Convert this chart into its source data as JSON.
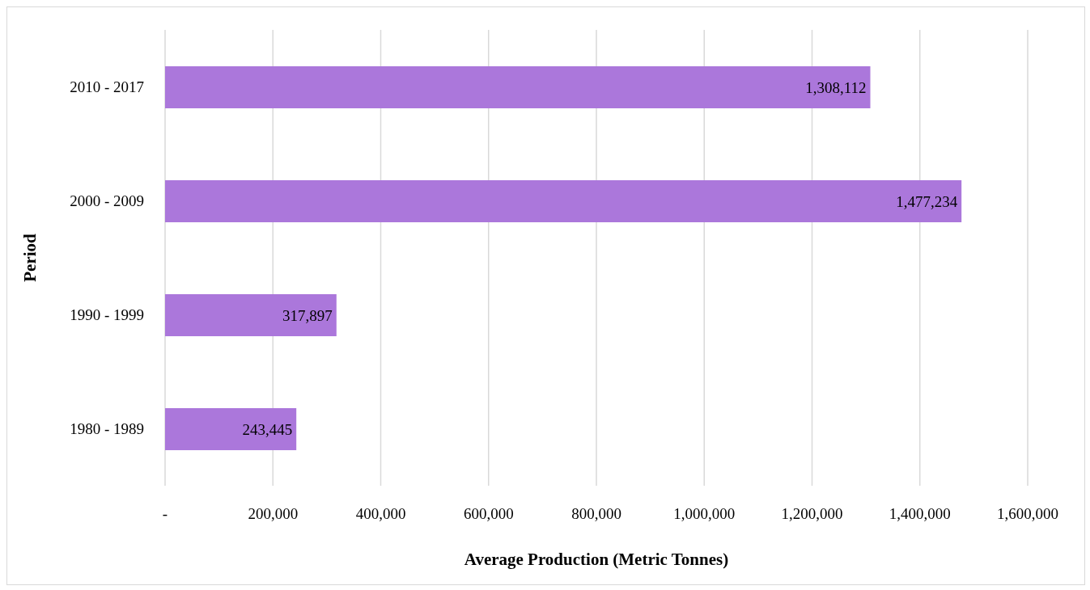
{
  "chart_data": {
    "type": "bar",
    "orientation": "horizontal",
    "xlabel": "Average Production (Metric Tonnes)",
    "ylabel": "Period",
    "categories": [
      "2010 - 2017",
      "2000 - 2009",
      "1990 - 1999",
      "1980 - 1989"
    ],
    "values": [
      1308112,
      1477234,
      317897,
      243445
    ],
    "color": "#ab77db",
    "value_labels": [
      "1,308,112",
      "1,477,234",
      "317,897",
      "243,445"
    ],
    "xlim": [
      0,
      1600000
    ],
    "xticks": [
      {
        "value": 0,
        "label": "-"
      },
      {
        "value": 200000,
        "label": "200,000"
      },
      {
        "value": 400000,
        "label": "400,000"
      },
      {
        "value": 600000,
        "label": "600,000"
      },
      {
        "value": 800000,
        "label": "800,000"
      },
      {
        "value": 1000000,
        "label": "1,000,000"
      },
      {
        "value": 1200000,
        "label": "1,200,000"
      },
      {
        "value": 1400000,
        "label": "1,400,000"
      },
      {
        "value": 1600000,
        "label": "1,600,000"
      }
    ],
    "grid": "x",
    "legend": false
  }
}
